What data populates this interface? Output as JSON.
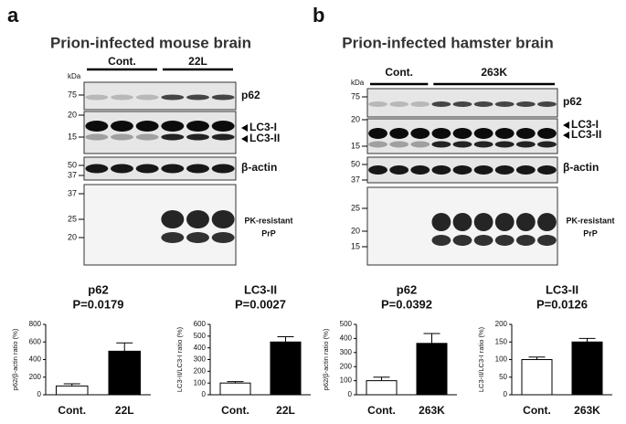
{
  "panels": [
    {
      "letter": "a",
      "title": "Prion-infected mouse brain",
      "groups": [
        "Cont.",
        "22L"
      ],
      "kda_label": "kDa",
      "blots": [
        {
          "labels": [
            "p62"
          ],
          "markers": [
            "75"
          ]
        },
        {
          "labels": [
            "LC3-I",
            "LC3-II"
          ],
          "markers": [
            "20",
            "15"
          ]
        },
        {
          "labels": [
            "β-actin"
          ],
          "markers": [
            "50",
            "37"
          ]
        },
        {
          "labels": [
            "PK-resistant",
            "PrP"
          ],
          "markers": [
            "37",
            "25",
            "20"
          ]
        }
      ]
    },
    {
      "letter": "b",
      "title": "Prion-infected hamster brain",
      "groups": [
        "Cont.",
        "263K"
      ],
      "kda_label": "kDa",
      "blots": [
        {
          "labels": [
            "p62"
          ],
          "markers": [
            "75"
          ]
        },
        {
          "labels": [
            "LC3-I",
            "LC3-II"
          ],
          "markers": [
            "20",
            "15"
          ]
        },
        {
          "labels": [
            "β-actin"
          ],
          "markers": [
            "50",
            "37"
          ]
        },
        {
          "labels": [
            "PK-resistant",
            "PrP"
          ],
          "markers": [
            "25",
            "20",
            "15"
          ]
        }
      ]
    }
  ],
  "chart_data": [
    {
      "type": "bar",
      "title": "p62",
      "subtitle": "P=0.0179",
      "y_label": "p62/β-actin ratio (%)",
      "categories": [
        "Cont.",
        "22L"
      ],
      "values": [
        100,
        495
      ],
      "errors": [
        25,
        95
      ],
      "colors": [
        "#ffffff",
        "#000000"
      ],
      "ylim": [
        0,
        800
      ],
      "yticks": [
        0,
        200,
        400,
        600,
        800
      ]
    },
    {
      "type": "bar",
      "title": "LC3-II",
      "subtitle": "P=0.0027",
      "y_label": "LC3-II/LC3-I ratio (%)",
      "categories": [
        "Cont.",
        "22L"
      ],
      "values": [
        100,
        450
      ],
      "errors": [
        12,
        45
      ],
      "colors": [
        "#ffffff",
        "#000000"
      ],
      "ylim": [
        0,
        600
      ],
      "yticks": [
        0,
        100,
        200,
        300,
        400,
        500,
        600
      ]
    },
    {
      "type": "bar",
      "title": "p62",
      "subtitle": "P=0.0392",
      "y_label": "p62/β-actin ratio (%)",
      "categories": [
        "Cont.",
        "263K"
      ],
      "values": [
        100,
        365
      ],
      "errors": [
        25,
        70
      ],
      "colors": [
        "#ffffff",
        "#000000"
      ],
      "ylim": [
        0,
        500
      ],
      "yticks": [
        0,
        100,
        200,
        300,
        400,
        500
      ]
    },
    {
      "type": "bar",
      "title": "LC3-II",
      "subtitle": "P=0.0126",
      "y_label": "LC3-II/LC3-I ratio (%)",
      "categories": [
        "Cont.",
        "263K"
      ],
      "values": [
        100,
        150
      ],
      "errors": [
        7,
        10
      ],
      "colors": [
        "#ffffff",
        "#000000"
      ],
      "ylim": [
        0,
        200
      ],
      "yticks": [
        0,
        50,
        100,
        150,
        200
      ]
    }
  ]
}
